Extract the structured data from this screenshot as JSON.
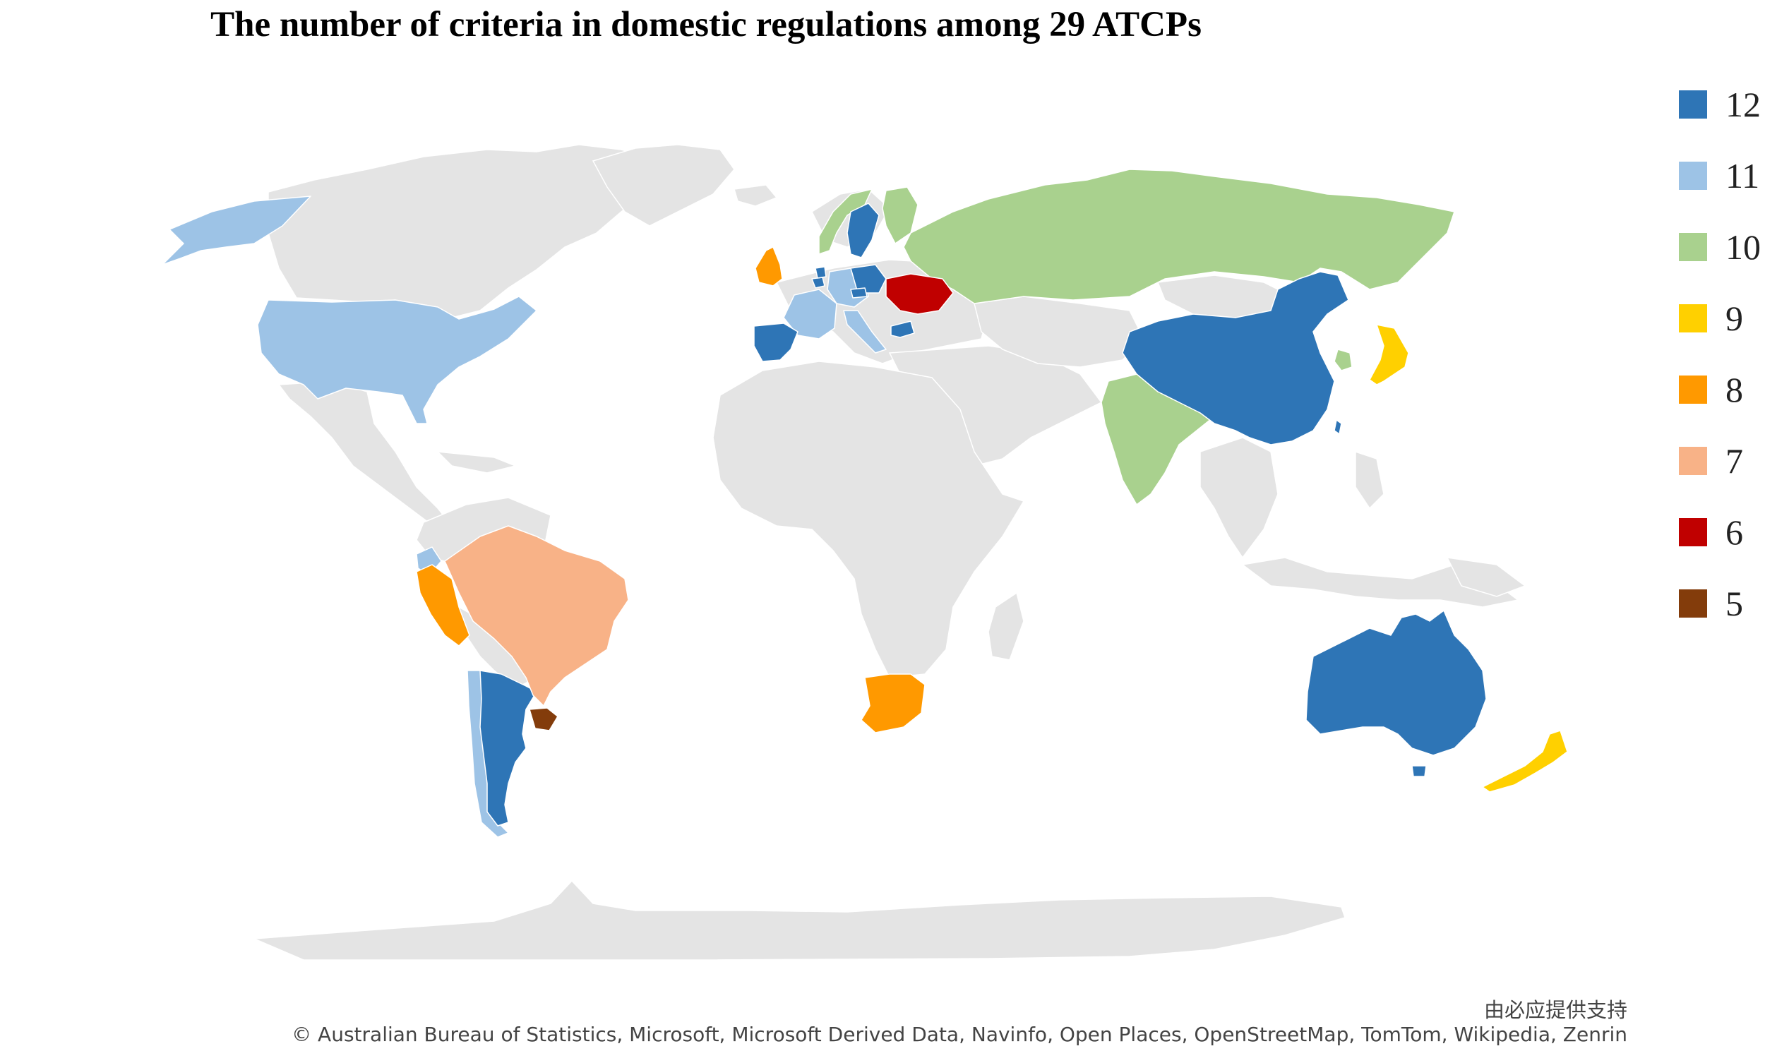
{
  "title": "The number of criteria in domestic regulations among 29 ATCPs",
  "legend": [
    {
      "label": "12",
      "color": "#2E75B6"
    },
    {
      "label": "11",
      "color": "#9DC3E6"
    },
    {
      "label": "10",
      "color": "#A9D18E"
    },
    {
      "label": "9",
      "color": "#FFD000"
    },
    {
      "label": "8",
      "color": "#FF9900"
    },
    {
      "label": "7",
      "color": "#F8B287"
    },
    {
      "label": "6",
      "color": "#C00000"
    },
    {
      "label": "5",
      "color": "#833C0B"
    }
  ],
  "colors": {
    "no_data": "#E4E4E4",
    "border": "#FFFFFF"
  },
  "regions": [
    {
      "name": "United States",
      "value": 11
    },
    {
      "name": "Germany",
      "value": 11
    },
    {
      "name": "France",
      "value": 11
    },
    {
      "name": "Italy",
      "value": 11
    },
    {
      "name": "Ecuador",
      "value": 11
    },
    {
      "name": "Chile",
      "value": 11
    },
    {
      "name": "Russia",
      "value": 10
    },
    {
      "name": "India",
      "value": 10
    },
    {
      "name": "Finland",
      "value": 10
    },
    {
      "name": "Norway",
      "value": 10
    },
    {
      "name": "South Korea",
      "value": 10
    },
    {
      "name": "China",
      "value": 12
    },
    {
      "name": "Australia",
      "value": 12
    },
    {
      "name": "Argentina",
      "value": 12
    },
    {
      "name": "Spain",
      "value": 12
    },
    {
      "name": "Sweden",
      "value": 12
    },
    {
      "name": "Poland",
      "value": 12
    },
    {
      "name": "Bulgaria",
      "value": 12
    },
    {
      "name": "Belgium",
      "value": 12
    },
    {
      "name": "Netherlands",
      "value": 12
    },
    {
      "name": "Czechia",
      "value": 12
    },
    {
      "name": "Japan",
      "value": 9
    },
    {
      "name": "New Zealand",
      "value": 9
    },
    {
      "name": "United Kingdom",
      "value": 8
    },
    {
      "name": "Peru",
      "value": 8
    },
    {
      "name": "South Africa",
      "value": 8
    },
    {
      "name": "Brazil",
      "value": 7
    },
    {
      "name": "Ukraine",
      "value": 6
    },
    {
      "name": "Uruguay",
      "value": 5
    }
  ],
  "credits": {
    "provider": "由必应提供支持",
    "attribution": "© Australian Bureau of Statistics, Microsoft, Microsoft Derived Data, Navinfo, Open Places, OpenStreetMap, TomTom, Wikipedia, Zenrin"
  }
}
